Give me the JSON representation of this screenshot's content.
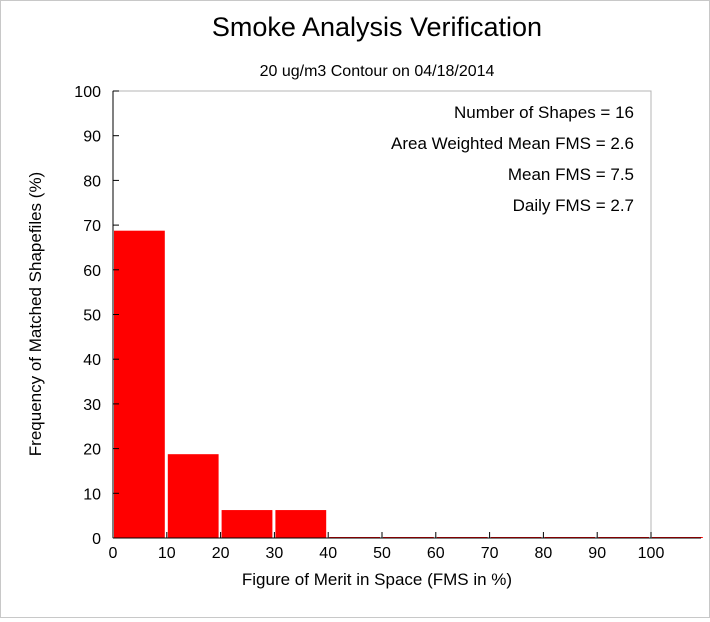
{
  "chart_data": {
    "type": "bar",
    "title": "Smoke Analysis Verification",
    "subtitle": "20 ug/m3 Contour on 04/18/2014",
    "xlabel": "Figure of Merit in Space (FMS in %)",
    "ylabel": "Frequency of Matched Shapefiles (%)",
    "xlim": [
      0,
      100
    ],
    "ylim": [
      0,
      100
    ],
    "xticks": [
      "0",
      "10",
      "20",
      "30",
      "40",
      "50",
      "60",
      "70",
      "80",
      "90",
      "100"
    ],
    "yticks": [
      "0",
      "10",
      "20",
      "30",
      "40",
      "50",
      "60",
      "70",
      "80",
      "90",
      "100"
    ],
    "bins": [
      {
        "start": 0,
        "end": 10,
        "value": 68.75
      },
      {
        "start": 10,
        "end": 20,
        "value": 18.75
      },
      {
        "start": 20,
        "end": 30,
        "value": 6.25
      },
      {
        "start": 30,
        "end": 40,
        "value": 6.25
      },
      {
        "start": 40,
        "end": 50,
        "value": 0
      },
      {
        "start": 50,
        "end": 60,
        "value": 0
      },
      {
        "start": 60,
        "end": 70,
        "value": 0
      },
      {
        "start": 70,
        "end": 80,
        "value": 0
      },
      {
        "start": 80,
        "end": 90,
        "value": 0
      },
      {
        "start": 90,
        "end": 100,
        "value": 0
      },
      {
        "start": 100,
        "end": 110,
        "value": 0
      }
    ],
    "bar_color": "#ff0000",
    "stats": [
      "Number of Shapes = 16",
      "Area Weighted Mean FMS = 2.6",
      "Mean FMS = 7.5",
      "Daily FMS = 2.7"
    ],
    "grid": false,
    "legend": "none"
  }
}
